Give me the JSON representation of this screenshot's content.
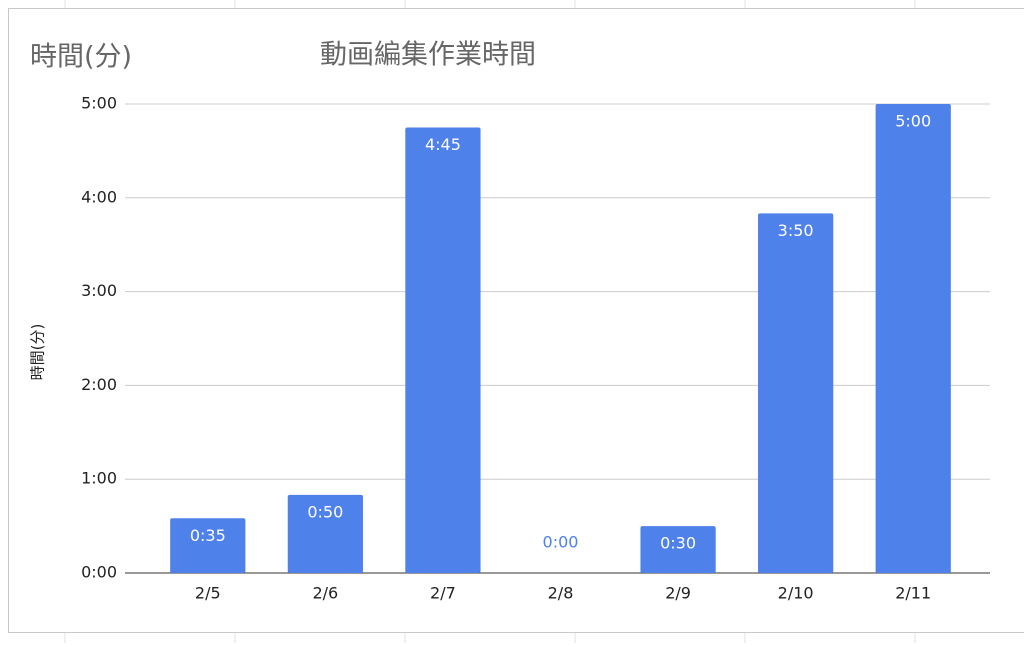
{
  "chart_data": {
    "type": "bar",
    "corner_label": "時間(分)",
    "title": "動画編集作業時間",
    "y_axis_label": "時間(分)",
    "categories": [
      "2/5",
      "2/6",
      "2/7",
      "2/8",
      "2/9",
      "2/10",
      "2/11"
    ],
    "values": [
      0.5833,
      0.8333,
      4.75,
      0,
      0.5,
      3.8333,
      5
    ],
    "value_labels": [
      "0:35",
      "0:50",
      "4:45",
      "0:00",
      "0:30",
      "3:50",
      "5:00"
    ],
    "color": "#4f81ea",
    "ylim": [
      0,
      5
    ],
    "yticks": [
      {
        "value": 0,
        "label": "0:00"
      },
      {
        "value": 1,
        "label": "1:00"
      },
      {
        "value": 2,
        "label": "2:00"
      },
      {
        "value": 3,
        "label": "3:00"
      },
      {
        "value": 4,
        "label": "4:00"
      },
      {
        "value": 5,
        "label": "5:00"
      }
    ],
    "grid": true
  }
}
